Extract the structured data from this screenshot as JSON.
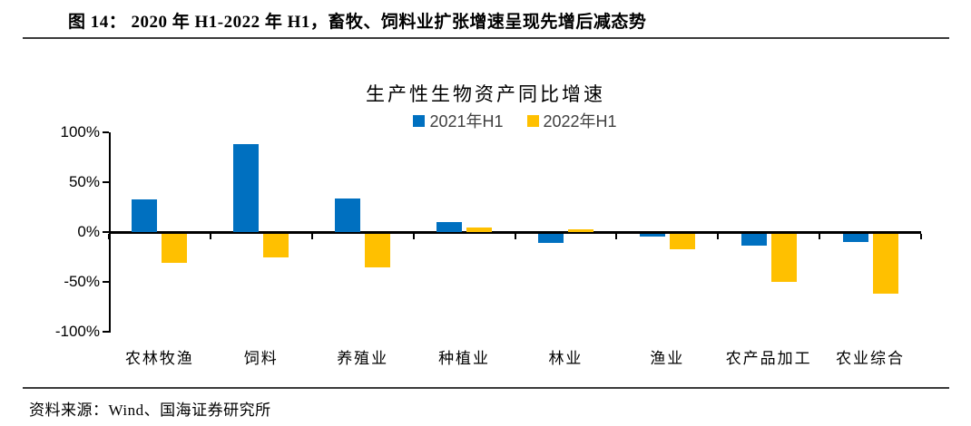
{
  "header": {
    "title": "图 14：  2020 年 H1-2022 年 H1，畜牧、饲料业扩张增速呈现先增后减态势"
  },
  "chart_data": {
    "type": "bar",
    "title": "生产性生物资产同比增速",
    "categories": [
      "农林牧渔",
      "饲料",
      "养殖业",
      "种植业",
      "林业",
      "渔业",
      "农产品加工",
      "农业综合"
    ],
    "series": [
      {
        "name": "2021年H1",
        "color": "#0070C0",
        "values": [
          33,
          88,
          34,
          10,
          -9,
          -3,
          -12,
          -8
        ]
      },
      {
        "name": "2022年H1",
        "color": "#FFC000",
        "values": [
          -29,
          -24,
          -34,
          5,
          3,
          -15,
          -48,
          -60
        ]
      }
    ],
    "unit": "%",
    "ylim": [
      -100,
      100
    ],
    "yticks": [
      {
        "value": 100,
        "label": "100%"
      },
      {
        "value": 50,
        "label": "50%"
      },
      {
        "value": 0,
        "label": "0%"
      },
      {
        "value": -50,
        "label": "-50%"
      },
      {
        "value": -100,
        "label": "-100%"
      }
    ],
    "grid": false,
    "legend_position": "top-center"
  },
  "footer": {
    "source": "资料来源：Wind、国海证券研究所"
  }
}
